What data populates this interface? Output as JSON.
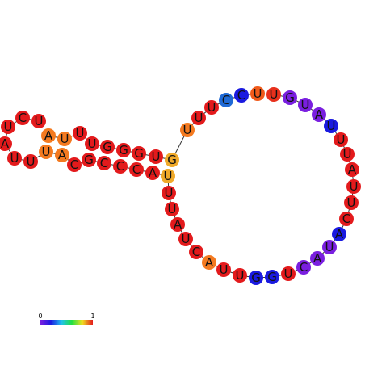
{
  "nodes": [
    {
      "label": "A",
      "color": "#f47a20"
    },
    {
      "label": "U",
      "color": "#f47a20"
    },
    {
      "label": "U",
      "color": "#e31a1c"
    },
    {
      "label": "U",
      "color": "#e31a1c"
    },
    {
      "label": "G",
      "color": "#e31a1c"
    },
    {
      "label": "G",
      "color": "#e31a1c"
    },
    {
      "label": "G",
      "color": "#e31a1c"
    },
    {
      "label": "U",
      "color": "#e31a1c"
    },
    {
      "label": "G",
      "color": "#f0aa2a"
    },
    {
      "label": "U",
      "color": "#f47a20"
    },
    {
      "label": "U",
      "color": "#e31a1c"
    },
    {
      "label": "U",
      "color": "#e31a1c"
    },
    {
      "label": "C",
      "color": "#1f6ad6"
    },
    {
      "label": "C",
      "color": "#1a1ae0"
    },
    {
      "label": "U",
      "color": "#f05a1a"
    },
    {
      "label": "U",
      "color": "#e8301c"
    },
    {
      "label": "G",
      "color": "#7a1fe0"
    },
    {
      "label": "U",
      "color": "#7a1fe0"
    },
    {
      "label": "A",
      "color": "#7a1fe0"
    },
    {
      "label": "U",
      "color": "#1a1ae0"
    },
    {
      "label": "U",
      "color": "#e31a1c"
    },
    {
      "label": "U",
      "color": "#e31a1c"
    },
    {
      "label": "A",
      "color": "#e31a1c"
    },
    {
      "label": "U",
      "color": "#e31a1c"
    },
    {
      "label": "U",
      "color": "#e31a1c"
    },
    {
      "label": "C",
      "color": "#e31a1c"
    },
    {
      "label": "A",
      "color": "#1a1ae0"
    },
    {
      "label": "U",
      "color": "#7a1fe0"
    },
    {
      "label": "A",
      "color": "#7a1fe0"
    },
    {
      "label": "C",
      "color": "#7a1fe0"
    },
    {
      "label": "U",
      "color": "#e31a1c"
    },
    {
      "label": "G",
      "color": "#1a1ae0"
    },
    {
      "label": "G",
      "color": "#1a1ae0"
    },
    {
      "label": "U",
      "color": "#e31a1c"
    },
    {
      "label": "U",
      "color": "#e31a1c"
    },
    {
      "label": "A",
      "color": "#f47a20"
    },
    {
      "label": "C",
      "color": "#e31a1c"
    },
    {
      "label": "U",
      "color": "#e31a1c"
    },
    {
      "label": "A",
      "color": "#e31a1c"
    },
    {
      "label": "U",
      "color": "#e31a1c"
    },
    {
      "label": "U",
      "color": "#e31a1c"
    },
    {
      "label": "U",
      "color": "#f0aa2a"
    },
    {
      "label": "A",
      "color": "#e31a1c"
    },
    {
      "label": "C",
      "color": "#e31a1c"
    },
    {
      "label": "C",
      "color": "#e31a1c"
    },
    {
      "label": "C",
      "color": "#e31a1c"
    },
    {
      "label": "G",
      "color": "#e31a1c"
    },
    {
      "label": "C",
      "color": "#e31a1c"
    },
    {
      "label": "A",
      "color": "#f47a20"
    },
    {
      "label": "U",
      "color": "#f47a20"
    },
    {
      "label": "U",
      "color": "#e31a1c"
    },
    {
      "label": "U",
      "color": "#e31a1c"
    },
    {
      "label": "A",
      "color": "#e31a1c"
    },
    {
      "label": "U",
      "color": "#e31a1c"
    },
    {
      "label": "C",
      "color": "#e31a1c"
    },
    {
      "label": "U",
      "color": "#e31a1c"
    }
  ],
  "legend": {
    "min": "0",
    "max": "1"
  }
}
